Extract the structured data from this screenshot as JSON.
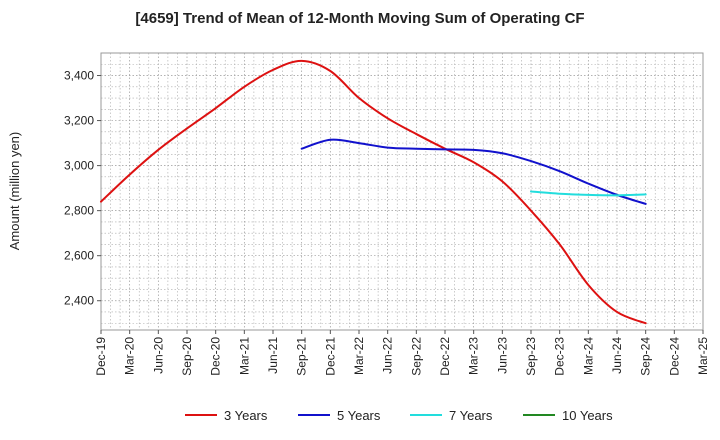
{
  "chart_data": {
    "type": "line",
    "title": "[4659]  Trend of Mean of 12-Month Moving Sum of Operating CF",
    "xlabel": "",
    "ylabel": "Amount (million yen)",
    "ylim": [
      2270,
      3500
    ],
    "y_ticks": [
      2400,
      2600,
      2800,
      3000,
      3200,
      3400
    ],
    "y_tick_labels": [
      "2,400",
      "2,600",
      "2,800",
      "3,000",
      "3,200",
      "3,400"
    ],
    "x_tick_labels": [
      "Dec-19",
      "Mar-20",
      "Jun-20",
      "Sep-20",
      "Dec-20",
      "Mar-21",
      "Jun-21",
      "Sep-21",
      "Dec-21",
      "Mar-22",
      "Jun-22",
      "Sep-22",
      "Dec-22",
      "Mar-23",
      "Jun-23",
      "Sep-23",
      "Dec-23",
      "Mar-24",
      "Jun-24",
      "Sep-24",
      "Dec-24",
      "Mar-25"
    ],
    "grid": true,
    "legend_position": "bottom",
    "series": [
      {
        "name": "3 Years",
        "color": "#dd1111",
        "x": [
          "Dec-19",
          "Mar-20",
          "Jun-20",
          "Sep-20",
          "Dec-20",
          "Mar-21",
          "Jun-21",
          "Sep-21",
          "Dec-21",
          "Mar-22",
          "Jun-22",
          "Sep-22",
          "Dec-22",
          "Mar-23",
          "Jun-23",
          "Sep-23",
          "Dec-23",
          "Mar-24",
          "Jun-24",
          "Sep-24"
        ],
        "values": [
          2840,
          2960,
          3070,
          3165,
          3255,
          3350,
          3425,
          3465,
          3420,
          3300,
          3210,
          3140,
          3075,
          3015,
          2930,
          2800,
          2650,
          2470,
          2350,
          2300
        ]
      },
      {
        "name": "5 Years",
        "color": "#1111cc",
        "x": [
          "Sep-21",
          "Dec-21",
          "Mar-22",
          "Jun-22",
          "Sep-22",
          "Dec-22",
          "Mar-23",
          "Jun-23",
          "Sep-23",
          "Dec-23",
          "Mar-24",
          "Jun-24",
          "Sep-24"
        ],
        "values": [
          3075,
          3115,
          3100,
          3080,
          3075,
          3072,
          3070,
          3055,
          3020,
          2975,
          2920,
          2870,
          2830
        ]
      },
      {
        "name": "7 Years",
        "color": "#22dddd",
        "x": [
          "Sep-23",
          "Dec-23",
          "Mar-24",
          "Jun-24",
          "Sep-24"
        ],
        "values": [
          2885,
          2875,
          2870,
          2868,
          2872
        ]
      },
      {
        "name": "10 Years",
        "color": "#228822",
        "x": [],
        "values": []
      }
    ]
  }
}
